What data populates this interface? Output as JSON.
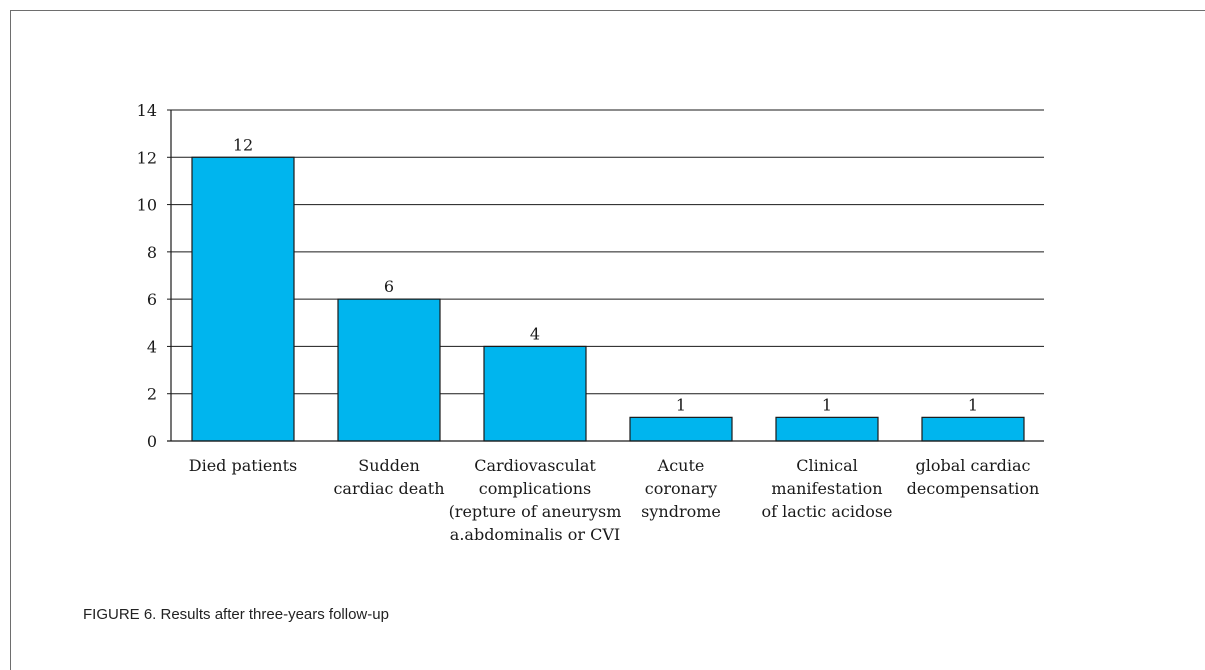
{
  "caption": "FIGURE 6. Results after three-years follow-up",
  "colors": {
    "bar_fill": "#00b5ee",
    "bar_stroke": "#1a1a1a",
    "grid": "#1a1a1a",
    "axis": "#1a1a1a"
  },
  "chart_data": {
    "type": "bar",
    "title": "",
    "xlabel": "",
    "ylabel": "",
    "ylim": [
      0,
      14
    ],
    "yticks": [
      0,
      2,
      4,
      6,
      8,
      10,
      12,
      14
    ],
    "grid": true,
    "categories": [
      [
        "Died patients"
      ],
      [
        "Sudden",
        "cardiac death"
      ],
      [
        "Cardiovasculat",
        "complications",
        "(repture of aneurysm",
        "a.abdominalis or CVI"
      ],
      [
        "Acute",
        "coronary",
        "syndrome"
      ],
      [
        "Clinical",
        "manifestation",
        "of lactic acidose"
      ],
      [
        "global cardiac",
        "decompensation"
      ]
    ],
    "values": [
      12,
      6,
      4,
      1,
      1,
      1
    ],
    "data_labels": [
      "12",
      "6",
      "4",
      "1",
      "1",
      "1"
    ]
  }
}
